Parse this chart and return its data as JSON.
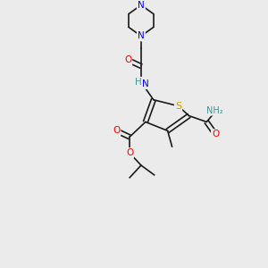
{
  "bg_color": "#ebebeb",
  "bond_color": "#1a1a1a",
  "atom_colors": {
    "O": "#ff0000",
    "N": "#0000ff",
    "S": "#c8a000",
    "H": "#4a9090",
    "C": "#1a1a1a"
  },
  "font_size": 7.5,
  "bond_width": 1.2
}
